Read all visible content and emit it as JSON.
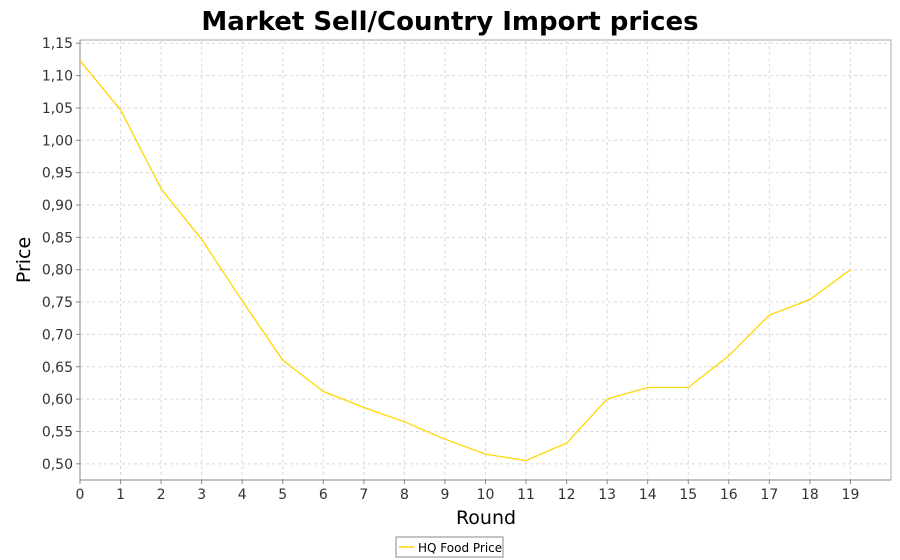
{
  "chart_data": {
    "type": "line",
    "title": "Market Sell/Country Import prices",
    "xlabel": "Round",
    "ylabel": "Price",
    "x": [
      0,
      1,
      2,
      3,
      4,
      5,
      6,
      7,
      8,
      9,
      10,
      11,
      12,
      13,
      14,
      15,
      16,
      17,
      18,
      19
    ],
    "x_ticks": [
      "0",
      "1",
      "2",
      "3",
      "4",
      "5",
      "6",
      "7",
      "8",
      "9",
      "10",
      "11",
      "12",
      "13",
      "14",
      "15",
      "16",
      "17",
      "18",
      "19"
    ],
    "xlim": [
      0,
      20
    ],
    "ylim": [
      0.475,
      1.155
    ],
    "y_tick_values": [
      0.5,
      0.55,
      0.6,
      0.65,
      0.7,
      0.75,
      0.8,
      0.85,
      0.9,
      0.95,
      1.0,
      1.05,
      1.1,
      1.15
    ],
    "y_ticks": [
      "0,50",
      "0,55",
      "0,60",
      "0,65",
      "0,70",
      "0,75",
      "0,80",
      "0,85",
      "0,90",
      "0,95",
      "1,00",
      "1,05",
      "1,10",
      "1,15"
    ],
    "grid": true,
    "legend_position": "bottom-center",
    "series": [
      {
        "name": "HQ Food Price",
        "color": "#ffd700",
        "values": [
          1.123,
          1.047,
          0.925,
          0.847,
          0.752,
          0.66,
          0.612,
          0.587,
          0.565,
          0.538,
          0.515,
          0.505,
          0.532,
          0.6,
          0.618,
          0.618,
          0.667,
          0.73,
          0.754,
          0.8
        ]
      }
    ]
  }
}
